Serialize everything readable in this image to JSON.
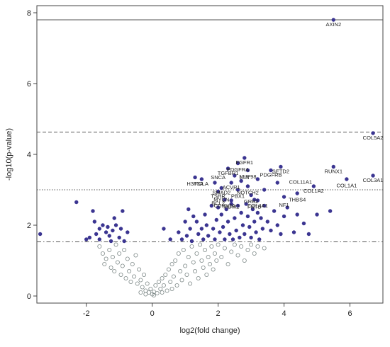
{
  "chart_data": {
    "type": "scatter",
    "title": "",
    "xlabel": "log2(fold change)",
    "ylabel": "-log10(p-value)",
    "xlim": [
      -3.5,
      7.0
    ],
    "ylim": [
      -0.2,
      8.2
    ],
    "x_ticks": [
      -2,
      0,
      2,
      4,
      6
    ],
    "y_ticks": [
      0,
      2,
      4,
      6,
      8
    ],
    "grid": false,
    "colors": {
      "significant": "#3b3591",
      "nonsignificant_stroke": "#7f8a89",
      "threshold": "#555555"
    },
    "thresholds": [
      {
        "y": 7.8,
        "style": "solid"
      },
      {
        "y": 4.63,
        "style": "dashed"
      },
      {
        "y": 3.0,
        "style": "dotted"
      },
      {
        "y": 1.53,
        "style": "dashdot"
      }
    ],
    "labeled_points": [
      {
        "label": "AXIN2",
        "x": 5.5,
        "y": 7.8
      },
      {
        "label": "COL5A2",
        "x": 6.7,
        "y": 4.6
      },
      {
        "label": "RUNX1",
        "x": 5.5,
        "y": 3.65
      },
      {
        "label": "COL3A1",
        "x": 6.7,
        "y": 3.4
      },
      {
        "label": "COL1A1",
        "x": 5.9,
        "y": 3.25
      },
      {
        "label": "COL1A2",
        "x": 4.9,
        "y": 3.1
      },
      {
        "label": "THBS4",
        "x": 4.4,
        "y": 2.85
      },
      {
        "label": "COL11A1",
        "x": 4.5,
        "y": 3.35
      },
      {
        "label": "FGFR1",
        "x": 2.8,
        "y": 3.9
      },
      {
        "label": "PDGFRA",
        "x": 2.6,
        "y": 3.7
      },
      {
        "label": "SETD2",
        "x": 3.9,
        "y": 3.65
      },
      {
        "label": "PDGFRB",
        "x": 3.6,
        "y": 3.55
      },
      {
        "label": "TGFBR1",
        "x": 2.3,
        "y": 3.6
      },
      {
        "label": "NUP98",
        "x": 2.9,
        "y": 3.5
      },
      {
        "label": "SNCA",
        "x": 2.0,
        "y": 3.48
      },
      {
        "label": "LTN",
        "x": 2.8,
        "y": 3.48
      },
      {
        "label": "H3F3A",
        "x": 1.3,
        "y": 3.3
      },
      {
        "label": "FCLA",
        "x": 1.5,
        "y": 3.3
      },
      {
        "label": "SMAD2",
        "x": 2.1,
        "y": 3.05
      },
      {
        "label": "ACVR1",
        "x": 2.4,
        "y": 3.2
      },
      {
        "label": "NOTCH2",
        "x": 2.9,
        "y": 3.05
      },
      {
        "label": "TSHR",
        "x": 2.0,
        "y": 2.95
      },
      {
        "label": "PBX1",
        "x": 2.6,
        "y": 2.95
      },
      {
        "label": "MYCN",
        "x": 2.1,
        "y": 2.85
      },
      {
        "label": "GRB2",
        "x": 3.0,
        "y": 2.8
      },
      {
        "label": "BCL2",
        "x": 2.0,
        "y": 2.75
      },
      {
        "label": "NF1",
        "x": 4.0,
        "y": 2.7
      },
      {
        "label": "CDKN2A",
        "x": 2.2,
        "y": 2.68
      },
      {
        "label": "COL4A1",
        "x": 3.2,
        "y": 2.68
      },
      {
        "label": "MDM2",
        "x": 2.4,
        "y": 2.65
      },
      {
        "label": "FNTB",
        "x": 3.1,
        "y": 2.65
      }
    ],
    "significant_points": [
      [
        -3.4,
        1.75
      ],
      [
        -2.3,
        2.65
      ],
      [
        -2.0,
        1.6
      ],
      [
        -1.9,
        1.65
      ],
      [
        -1.8,
        2.4
      ],
      [
        -1.75,
        2.1
      ],
      [
        -1.7,
        1.75
      ],
      [
        -1.6,
        1.9
      ],
      [
        -1.6,
        1.6
      ],
      [
        -1.5,
        2.0
      ],
      [
        -1.4,
        1.8
      ],
      [
        -1.35,
        1.95
      ],
      [
        -1.3,
        1.7
      ],
      [
        -1.25,
        1.55
      ],
      [
        -1.2,
        1.85
      ],
      [
        -1.15,
        2.2
      ],
      [
        -1.1,
        2.0
      ],
      [
        -1.0,
        1.65
      ],
      [
        -0.95,
        1.9
      ],
      [
        -0.9,
        2.4
      ],
      [
        -0.85,
        1.55
      ],
      [
        -0.75,
        1.8
      ],
      [
        0.35,
        1.9
      ],
      [
        0.55,
        1.6
      ],
      [
        0.8,
        1.8
      ],
      [
        0.9,
        1.6
      ],
      [
        1.0,
        2.1
      ],
      [
        1.05,
        1.7
      ],
      [
        1.1,
        2.45
      ],
      [
        1.15,
        1.9
      ],
      [
        1.2,
        1.55
      ],
      [
        1.25,
        2.25
      ],
      [
        1.35,
        2.1
      ],
      [
        1.4,
        1.75
      ],
      [
        1.5,
        1.9
      ],
      [
        1.55,
        1.6
      ],
      [
        1.6,
        2.3
      ],
      [
        1.65,
        2.0
      ],
      [
        1.7,
        1.7
      ],
      [
        1.8,
        2.55
      ],
      [
        1.85,
        1.9
      ],
      [
        1.9,
        1.6
      ],
      [
        1.95,
        2.15
      ],
      [
        2.0,
        2.5
      ],
      [
        2.05,
        1.8
      ],
      [
        2.1,
        2.3
      ],
      [
        2.15,
        1.95
      ],
      [
        2.2,
        1.6
      ],
      [
        2.25,
        2.45
      ],
      [
        2.3,
        2.1
      ],
      [
        2.35,
        1.75
      ],
      [
        2.4,
        2.6
      ],
      [
        2.45,
        1.6
      ],
      [
        2.5,
        2.2
      ],
      [
        2.55,
        1.85
      ],
      [
        2.6,
        2.55
      ],
      [
        2.65,
        1.65
      ],
      [
        2.7,
        2.35
      ],
      [
        2.75,
        2.0
      ],
      [
        2.8,
        1.75
      ],
      [
        2.85,
        2.6
      ],
      [
        2.9,
        2.25
      ],
      [
        2.95,
        1.95
      ],
      [
        3.0,
        1.65
      ],
      [
        3.05,
        2.45
      ],
      [
        3.1,
        2.1
      ],
      [
        3.15,
        1.8
      ],
      [
        3.2,
        2.35
      ],
      [
        3.25,
        1.6
      ],
      [
        3.3,
        2.2
      ],
      [
        3.35,
        1.9
      ],
      [
        3.4,
        2.55
      ],
      [
        3.5,
        2.1
      ],
      [
        3.6,
        1.85
      ],
      [
        3.7,
        2.4
      ],
      [
        3.8,
        2.0
      ],
      [
        3.9,
        1.75
      ],
      [
        4.0,
        2.25
      ],
      [
        4.1,
        2.5
      ],
      [
        4.3,
        1.8
      ],
      [
        4.4,
        2.3
      ],
      [
        4.6,
        2.05
      ],
      [
        4.75,
        1.75
      ],
      [
        5.0,
        2.3
      ],
      [
        5.4,
        2.4
      ],
      [
        1.5,
        3.3
      ],
      [
        1.3,
        3.35
      ],
      [
        2.8,
        3.9
      ],
      [
        2.6,
        3.75
      ],
      [
        2.3,
        3.6
      ],
      [
        2.9,
        3.55
      ],
      [
        3.6,
        3.55
      ],
      [
        3.9,
        3.65
      ],
      [
        2.4,
        3.2
      ],
      [
        2.9,
        3.1
      ],
      [
        2.1,
        3.05
      ],
      [
        2.6,
        3.0
      ],
      [
        2.0,
        2.95
      ],
      [
        3.0,
        2.85
      ],
      [
        2.2,
        2.72
      ],
      [
        2.4,
        2.7
      ],
      [
        3.1,
        2.72
      ],
      [
        3.2,
        2.7
      ],
      [
        4.0,
        2.8
      ],
      [
        4.4,
        2.9
      ],
      [
        4.9,
        3.1
      ],
      [
        5.5,
        3.65
      ],
      [
        5.9,
        3.3
      ],
      [
        6.7,
        3.4
      ],
      [
        6.7,
        4.6
      ],
      [
        5.5,
        7.8
      ],
      [
        2.5,
        3.4
      ],
      [
        3.2,
        3.3
      ],
      [
        1.9,
        3.2
      ],
      [
        3.4,
        3.0
      ],
      [
        2.7,
        3.25
      ],
      [
        3.8,
        3.2
      ]
    ],
    "nonsignificant_points": [
      [
        -1.6,
        1.4
      ],
      [
        -1.5,
        1.2
      ],
      [
        -1.45,
        0.9
      ],
      [
        -1.4,
        1.05
      ],
      [
        -1.3,
        1.3
      ],
      [
        -1.25,
        0.8
      ],
      [
        -1.2,
        1.1
      ],
      [
        -1.15,
        0.7
      ],
      [
        -1.1,
        1.45
      ],
      [
        -1.05,
        0.95
      ],
      [
        -1.0,
        1.2
      ],
      [
        -0.95,
        0.6
      ],
      [
        -0.9,
        0.85
      ],
      [
        -0.85,
        1.3
      ],
      [
        -0.8,
        0.5
      ],
      [
        -0.75,
        1.05
      ],
      [
        -0.7,
        0.7
      ],
      [
        -0.65,
        0.4
      ],
      [
        -0.6,
        0.9
      ],
      [
        -0.55,
        0.55
      ],
      [
        -0.5,
        1.15
      ],
      [
        -0.45,
        0.35
      ],
      [
        -0.4,
        0.75
      ],
      [
        -0.35,
        0.45
      ],
      [
        -0.3,
        0.25
      ],
      [
        -0.25,
        0.6
      ],
      [
        -0.2,
        0.15
      ],
      [
        -0.15,
        0.35
      ],
      [
        -0.1,
        0.1
      ],
      [
        -0.05,
        0.2
      ],
      [
        0.0,
        0.05
      ],
      [
        0.05,
        0.12
      ],
      [
        0.1,
        0.3
      ],
      [
        0.15,
        0.08
      ],
      [
        0.2,
        0.4
      ],
      [
        0.25,
        0.2
      ],
      [
        0.3,
        0.5
      ],
      [
        0.35,
        0.3
      ],
      [
        0.4,
        0.6
      ],
      [
        0.45,
        0.15
      ],
      [
        0.5,
        0.75
      ],
      [
        0.55,
        0.4
      ],
      [
        0.6,
        0.9
      ],
      [
        0.65,
        0.55
      ],
      [
        0.7,
        1.0
      ],
      [
        0.75,
        0.3
      ],
      [
        0.8,
        1.2
      ],
      [
        0.85,
        0.7
      ],
      [
        0.9,
        0.45
      ],
      [
        0.95,
        1.3
      ],
      [
        1.0,
        0.85
      ],
      [
        1.05,
        0.6
      ],
      [
        1.1,
        1.1
      ],
      [
        1.15,
        0.35
      ],
      [
        1.2,
        1.4
      ],
      [
        1.25,
        0.95
      ],
      [
        1.3,
        0.7
      ],
      [
        1.35,
        1.2
      ],
      [
        1.4,
        0.5
      ],
      [
        1.45,
        1.45
      ],
      [
        1.5,
        1.0
      ],
      [
        1.55,
        0.8
      ],
      [
        1.6,
        1.3
      ],
      [
        1.65,
        0.6
      ],
      [
        1.7,
        1.1
      ],
      [
        1.75,
        0.9
      ],
      [
        1.8,
        1.4
      ],
      [
        1.85,
        0.75
      ],
      [
        1.9,
        1.2
      ],
      [
        1.95,
        1.0
      ],
      [
        2.0,
        1.45
      ],
      [
        2.1,
        1.1
      ],
      [
        2.2,
        1.35
      ],
      [
        2.3,
        0.9
      ],
      [
        2.4,
        1.25
      ],
      [
        2.5,
        1.45
      ],
      [
        2.6,
        1.15
      ],
      [
        2.7,
        1.4
      ],
      [
        2.8,
        1.0
      ],
      [
        2.9,
        1.3
      ],
      [
        3.0,
        1.45
      ],
      [
        3.1,
        1.2
      ],
      [
        3.2,
        1.4
      ],
      [
        3.4,
        1.35
      ],
      [
        -0.35,
        0.1
      ],
      [
        -0.2,
        0.05
      ],
      [
        0.05,
        0.02
      ],
      [
        0.3,
        0.1
      ],
      [
        0.6,
        0.2
      ]
    ]
  }
}
